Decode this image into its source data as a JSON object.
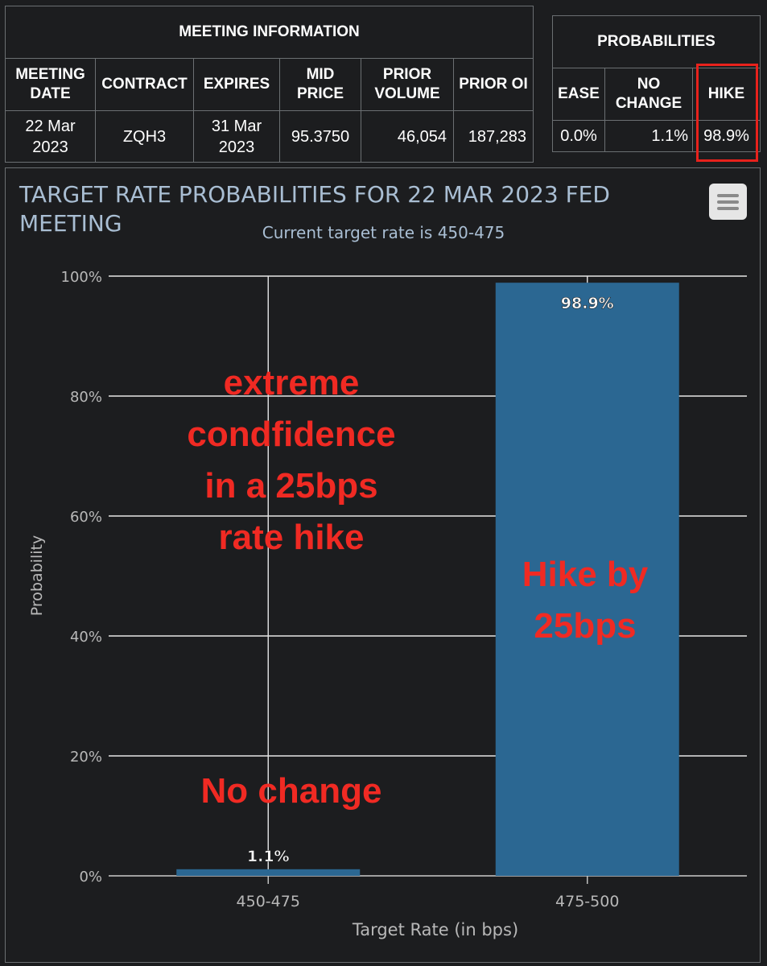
{
  "meeting_table": {
    "caption": "MEETING INFORMATION",
    "headers": [
      "MEETING DATE",
      "CONTRACT",
      "EXPIRES",
      "MID PRICE",
      "PRIOR VOLUME",
      "PRIOR OI"
    ],
    "row": [
      "22 Mar 2023",
      "ZQH3",
      "31 Mar 2023",
      "95.3750",
      "46,054",
      "187,283"
    ]
  },
  "probabilities_table": {
    "caption": "PROBABILITIES",
    "headers": [
      "EASE",
      "NO CHANGE",
      "HIKE"
    ],
    "row": [
      "0.0%",
      "1.1%",
      "98.9%"
    ],
    "highlight_color": "#e8221c"
  },
  "menu_icon": "hamburger-menu-icon",
  "chart_data": {
    "type": "bar",
    "title": "TARGET RATE PROBABILITIES FOR 22 MAR 2023 FED MEETING",
    "subtitle": "Current target rate is 450-475",
    "categories": [
      "450-475",
      "475-500"
    ],
    "values": [
      1.1,
      98.9
    ],
    "data_labels": [
      "1.1%",
      "98.9%"
    ],
    "xlabel": "Target Rate (in bps)",
    "ylabel": "Probability",
    "ylim": [
      0,
      100
    ],
    "yticks": [
      0,
      20,
      40,
      60,
      80,
      100
    ],
    "ytick_labels": [
      "0%",
      "20%",
      "40%",
      "60%",
      "80%",
      "100%"
    ],
    "grid": true,
    "bar_color": "#2b6792",
    "annotations": [
      {
        "lines": [
          "extreme",
          "condfidence",
          "in a 25bps",
          "rate hike"
        ],
        "color": "#f02a23"
      },
      {
        "lines": [
          "Hike by",
          "25bps"
        ],
        "color": "#f02a23"
      },
      {
        "lines": [
          "No change"
        ],
        "color": "#f02a23"
      }
    ]
  }
}
